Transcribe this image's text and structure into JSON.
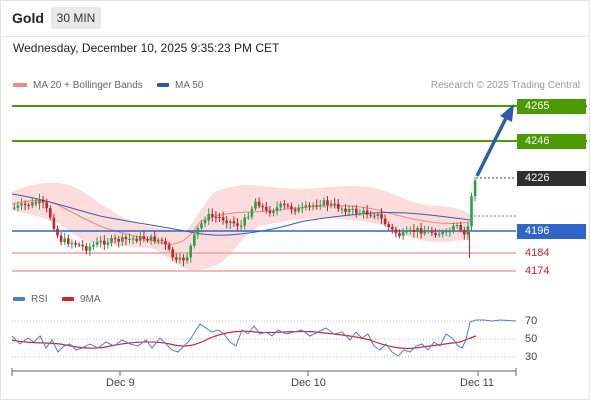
{
  "header": {
    "symbol": "Gold",
    "timeframe": "30 MIN"
  },
  "datetime": "Wednesday, December 10, 2025 9:35:23 PM CET",
  "legend": {
    "ma20": {
      "label": "MA 20 + Bollinger Bands",
      "color": "#f08a80"
    },
    "ma50": {
      "label": "MA 50",
      "color": "#2c5aa0"
    }
  },
  "credit": "Research © 2025 Trading Central",
  "levels": {
    "r2": "4265",
    "r1": "4246",
    "target": "4226",
    "pivot": "4196",
    "s1": "4184",
    "s2": "4174"
  },
  "colors": {
    "resistance": "#4a9a00",
    "pivot": "#2f64c9",
    "support": "#e05050",
    "up_candle": "#2e9e4c",
    "down_candle": "#c0262c",
    "arrow": "#2a5fa8"
  },
  "rsi": {
    "legend": {
      "rsi": "RSI",
      "ma": "9MA"
    },
    "ticks": [
      "70",
      "50",
      "30"
    ]
  },
  "xaxis": [
    "Dec 9",
    "Dec 10",
    "Dec 11"
  ]
}
